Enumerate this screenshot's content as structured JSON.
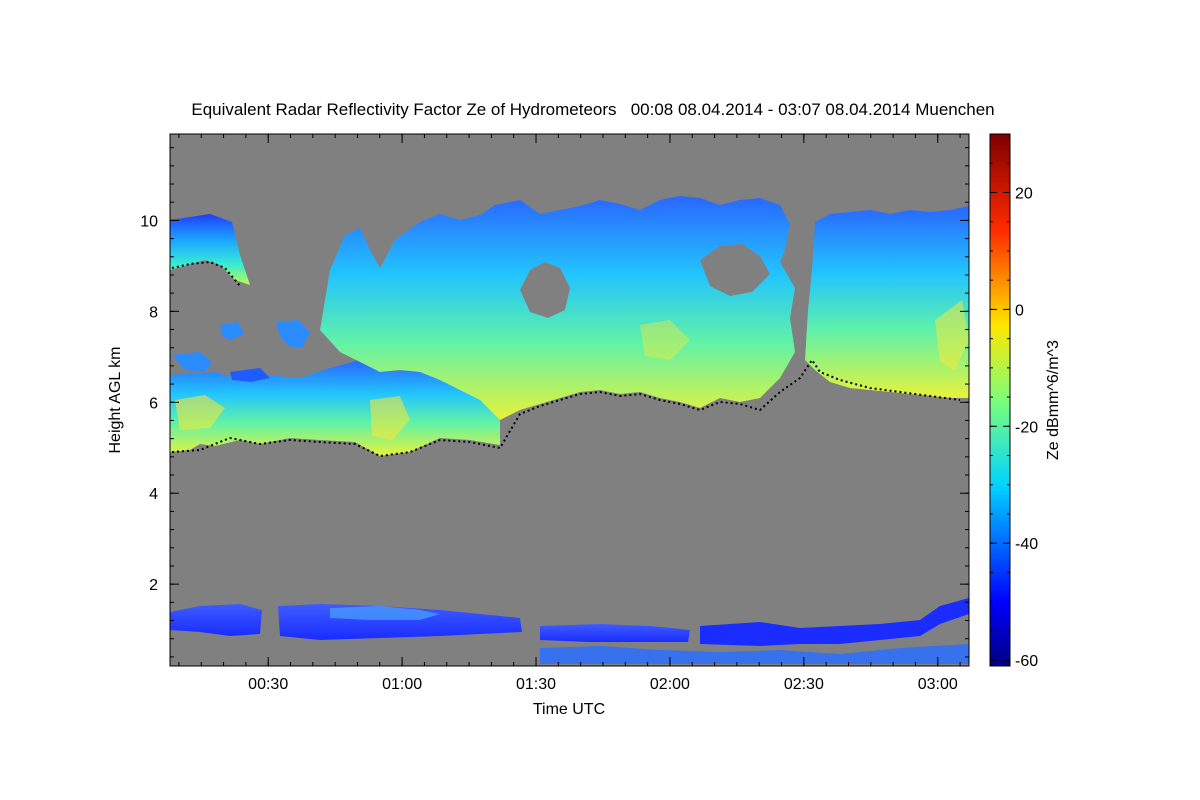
{
  "chart_data": {
    "type": "heatmap",
    "title": "Equivalent Radar Reflectivity Factor Ze of Hydrometeors   00:08 08.04.2014 - 03:07 08.04.2014 Muenchen",
    "xlabel": "Time UTC",
    "ylabel": "Height AGL km",
    "xlim": [
      "00:08",
      "03:07"
    ],
    "ylim": [
      0.2,
      11.9
    ],
    "x_ticks": [
      {
        "minutes": 30,
        "label": "00:30"
      },
      {
        "minutes": 60,
        "label": "01:00"
      },
      {
        "minutes": 90,
        "label": "01:30"
      },
      {
        "minutes": 120,
        "label": "02:00"
      },
      {
        "minutes": 150,
        "label": "02:30"
      },
      {
        "minutes": 180,
        "label": "03:00"
      }
    ],
    "y_ticks": [
      {
        "value": 2,
        "label": "2"
      },
      {
        "value": 4,
        "label": "4"
      },
      {
        "value": 6,
        "label": "6"
      },
      {
        "value": 8,
        "label": "8"
      },
      {
        "value": 10,
        "label": "10"
      }
    ],
    "colorbar": {
      "label": "Ze dBmm^6/m^3",
      "range": [
        -61,
        30
      ],
      "ticks": [
        {
          "value": -60,
          "label": "-60"
        },
        {
          "value": -40,
          "label": "-40"
        },
        {
          "value": -20,
          "label": "-20"
        },
        {
          "value": 0,
          "label": "0"
        },
        {
          "value": 20,
          "label": "20"
        }
      ],
      "colormap": "jet"
    },
    "background_color": "#808080",
    "cloud_base_color": "#000000"
  }
}
